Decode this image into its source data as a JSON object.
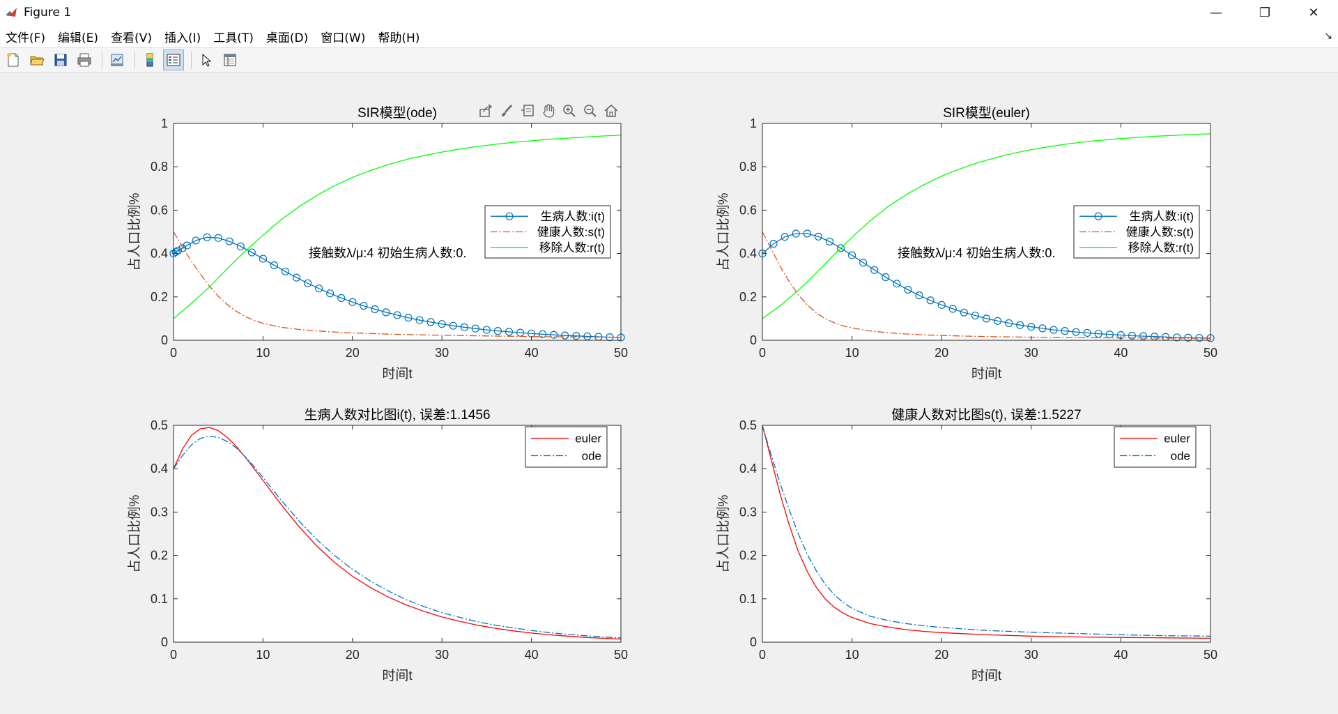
{
  "window": {
    "title": "Figure 1",
    "minimize": "—",
    "restore": "❐",
    "close": "✕"
  },
  "menu": {
    "items": [
      "文件(F)",
      "编辑(E)",
      "查看(V)",
      "插入(I)",
      "工具(T)",
      "桌面(D)",
      "窗口(W)",
      "帮助(H)"
    ]
  },
  "toolbar": {
    "icons": [
      "new-figure-icon",
      "open-file-icon",
      "save-icon",
      "print-icon",
      "link-plot-icon",
      "insert-colorbar-icon",
      "insert-legend-icon",
      "edit-plot-icon",
      "property-inspector-icon"
    ]
  },
  "axes_toolbar": {
    "icons": [
      "export-icon",
      "brush-icon",
      "datatip-icon",
      "pan-icon",
      "zoom-in-icon",
      "zoom-out-icon",
      "home-icon"
    ]
  },
  "chart_data": [
    {
      "type": "line",
      "title": "SIR模型(ode)",
      "xlabel": "时间t",
      "ylabel": "占人口比例%",
      "xlim": [
        0,
        50
      ],
      "ylim": [
        0,
        1
      ],
      "xticks": [
        0,
        10,
        20,
        30,
        40,
        50
      ],
      "yticks": [
        0,
        0.2,
        0.4,
        0.6,
        0.8,
        1
      ],
      "annotation": "接触数λ/μ:4 初始生病人数:0.",
      "legend": [
        "生病人数:i(t)",
        "健康人数:s(t)",
        "移除人数:r(t)"
      ],
      "series": [
        {
          "name": "生病人数:i(t)",
          "color": "#0072BD",
          "marker": "circle",
          "style": "solid",
          "x": [
            0,
            0.25,
            0.5,
            1,
            1.5,
            2.5,
            3.75,
            5,
            6.25,
            7.5,
            8.75,
            10,
            11.25,
            12.5,
            13.75,
            15,
            16.25,
            17.5,
            18.75,
            20,
            21.25,
            22.5,
            23.75,
            25,
            26.25,
            27.5,
            28.75,
            30,
            31.25,
            32.5,
            33.75,
            35,
            36.25,
            37.5,
            38.75,
            40,
            41.25,
            42.5,
            43.75,
            45,
            46.25,
            47.5,
            48.75,
            50
          ],
          "y": [
            0.4,
            0.407,
            0.414,
            0.425,
            0.437,
            0.46,
            0.475,
            0.472,
            0.456,
            0.433,
            0.405,
            0.376,
            0.346,
            0.317,
            0.289,
            0.263,
            0.239,
            0.216,
            0.195,
            0.176,
            0.159,
            0.143,
            0.129,
            0.116,
            0.104,
            0.093,
            0.084,
            0.075,
            0.067,
            0.06,
            0.054,
            0.048,
            0.043,
            0.039,
            0.035,
            0.031,
            0.028,
            0.025,
            0.022,
            0.02,
            0.018,
            0.016,
            0.014,
            0.013
          ]
        },
        {
          "name": "健康人数:s(t)",
          "color": "#D95319",
          "marker": "none",
          "style": "dashdot",
          "x": [
            0,
            1,
            2,
            3,
            4,
            5,
            6,
            7,
            8,
            9,
            10,
            12,
            14,
            16,
            18,
            20,
            25,
            30,
            35,
            40,
            45,
            50
          ],
          "y": [
            0.5,
            0.43,
            0.365,
            0.305,
            0.25,
            0.203,
            0.165,
            0.134,
            0.11,
            0.092,
            0.078,
            0.06,
            0.05,
            0.043,
            0.038,
            0.034,
            0.027,
            0.023,
            0.02,
            0.017,
            0.015,
            0.014
          ]
        },
        {
          "name": "移除人数:r(t)",
          "color": "#00FF00",
          "marker": "none",
          "style": "solid",
          "x": [
            0,
            2,
            4,
            6,
            8,
            10,
            12,
            14,
            16,
            18,
            20,
            22,
            24,
            26,
            28,
            30,
            32,
            34,
            36,
            38,
            40,
            42,
            44,
            46,
            48,
            50
          ],
          "y": [
            0.1,
            0.17,
            0.245,
            0.33,
            0.41,
            0.485,
            0.555,
            0.615,
            0.668,
            0.713,
            0.751,
            0.783,
            0.81,
            0.833,
            0.852,
            0.868,
            0.882,
            0.894,
            0.904,
            0.913,
            0.92,
            0.927,
            0.932,
            0.937,
            0.942,
            0.946
          ]
        }
      ]
    },
    {
      "type": "line",
      "title": "SIR模型(euler)",
      "xlabel": "时间t",
      "ylabel": "占人口比例%",
      "xlim": [
        0,
        50
      ],
      "ylim": [
        0,
        1
      ],
      "xticks": [
        0,
        10,
        20,
        30,
        40,
        50
      ],
      "yticks": [
        0,
        0.2,
        0.4,
        0.6,
        0.8,
        1
      ],
      "annotation": "接触数λ/μ:4 初始生病人数:0.",
      "legend": [
        "生病人数:i(t)",
        "健康人数:s(t)",
        "移除人数:r(t)"
      ],
      "series": [
        {
          "name": "生病人数:i(t)",
          "color": "#0072BD",
          "marker": "circle",
          "style": "solid",
          "x": [
            0,
            1.25,
            2.5,
            3.75,
            5,
            6.25,
            7.5,
            8.75,
            10,
            11.25,
            12.5,
            13.75,
            15,
            16.25,
            17.5,
            18.75,
            20,
            21.25,
            22.5,
            23.75,
            25,
            26.25,
            27.5,
            28.75,
            30,
            31.25,
            32.5,
            33.75,
            35,
            36.25,
            37.5,
            38.75,
            40,
            41.25,
            42.5,
            43.75,
            45,
            46.25,
            47.5,
            48.75,
            50
          ],
          "y": [
            0.4,
            0.445,
            0.477,
            0.492,
            0.492,
            0.478,
            0.455,
            0.425,
            0.392,
            0.358,
            0.324,
            0.291,
            0.261,
            0.233,
            0.207,
            0.184,
            0.163,
            0.145,
            0.128,
            0.114,
            0.1,
            0.089,
            0.079,
            0.07,
            0.062,
            0.055,
            0.048,
            0.043,
            0.038,
            0.034,
            0.03,
            0.027,
            0.024,
            0.021,
            0.019,
            0.017,
            0.015,
            0.013,
            0.012,
            0.011,
            0.01
          ]
        },
        {
          "name": "健康人数:s(t)",
          "color": "#D95319",
          "marker": "none",
          "style": "dashdot",
          "x": [
            0,
            1,
            2,
            3,
            4,
            5,
            6,
            7,
            8,
            9,
            10,
            12,
            14,
            16,
            18,
            20,
            25,
            30,
            35,
            40,
            45,
            50
          ],
          "y": [
            0.5,
            0.42,
            0.34,
            0.27,
            0.21,
            0.163,
            0.127,
            0.1,
            0.081,
            0.067,
            0.057,
            0.043,
            0.035,
            0.029,
            0.025,
            0.022,
            0.017,
            0.014,
            0.012,
            0.011,
            0.01,
            0.009
          ]
        },
        {
          "name": "移除人数:r(t)",
          "color": "#00FF00",
          "marker": "none",
          "style": "solid",
          "x": [
            0,
            2,
            4,
            6,
            8,
            10,
            12,
            14,
            16,
            18,
            20,
            22,
            24,
            26,
            28,
            30,
            32,
            34,
            36,
            38,
            40,
            42,
            44,
            46,
            48,
            50
          ],
          "y": [
            0.1,
            0.16,
            0.23,
            0.31,
            0.395,
            0.475,
            0.55,
            0.615,
            0.67,
            0.717,
            0.757,
            0.79,
            0.818,
            0.842,
            0.862,
            0.879,
            0.893,
            0.905,
            0.915,
            0.923,
            0.93,
            0.936,
            0.941,
            0.945,
            0.949,
            0.952
          ]
        }
      ]
    },
    {
      "type": "line",
      "title": "生病人数对比图i(t),    误差:1.1456",
      "xlabel": "时间t",
      "ylabel": "占人口比例%",
      "xlim": [
        0,
        50
      ],
      "ylim": [
        0,
        0.5
      ],
      "xticks": [
        0,
        10,
        20,
        30,
        40,
        50
      ],
      "yticks": [
        0,
        0.1,
        0.2,
        0.3,
        0.4,
        0.5
      ],
      "legend": [
        "euler",
        "ode"
      ],
      "series": [
        {
          "name": "euler",
          "color": "#FF0000",
          "marker": "none",
          "style": "solid",
          "x": [
            0,
            1,
            2,
            3,
            4,
            5,
            6,
            7,
            8,
            9,
            10,
            12,
            14,
            16,
            18,
            20,
            22,
            24,
            26,
            28,
            30,
            32,
            34,
            36,
            38,
            40,
            42,
            44,
            46,
            48,
            50
          ],
          "y": [
            0.4,
            0.445,
            0.477,
            0.492,
            0.495,
            0.488,
            0.472,
            0.452,
            0.427,
            0.4,
            0.373,
            0.318,
            0.267,
            0.222,
            0.184,
            0.152,
            0.126,
            0.104,
            0.086,
            0.071,
            0.058,
            0.048,
            0.039,
            0.032,
            0.026,
            0.021,
            0.017,
            0.014,
            0.011,
            0.009,
            0.007
          ]
        },
        {
          "name": "ode",
          "color": "#0072BD",
          "marker": "none",
          "style": "dashdot",
          "x": [
            0,
            1,
            2,
            3,
            4,
            5,
            6,
            7,
            8,
            9,
            10,
            12,
            14,
            16,
            18,
            20,
            22,
            24,
            26,
            28,
            30,
            32,
            34,
            36,
            38,
            40,
            42,
            44,
            46,
            48,
            50
          ],
          "y": [
            0.4,
            0.43,
            0.455,
            0.47,
            0.475,
            0.472,
            0.463,
            0.448,
            0.428,
            0.405,
            0.38,
            0.328,
            0.28,
            0.237,
            0.2,
            0.168,
            0.141,
            0.118,
            0.098,
            0.082,
            0.068,
            0.057,
            0.047,
            0.039,
            0.033,
            0.027,
            0.022,
            0.018,
            0.015,
            0.012,
            0.01
          ]
        }
      ]
    },
    {
      "type": "line",
      "title": "健康人数对比图s(t),    误差:1.5227",
      "xlabel": "时间t",
      "ylabel": "占人口比例%",
      "xlim": [
        0,
        50
      ],
      "ylim": [
        0,
        0.5
      ],
      "xticks": [
        0,
        10,
        20,
        30,
        40,
        50
      ],
      "yticks": [
        0,
        0.1,
        0.2,
        0.3,
        0.4,
        0.5
      ],
      "legend": [
        "euler",
        "ode"
      ],
      "series": [
        {
          "name": "euler",
          "color": "#FF0000",
          "marker": "none",
          "style": "solid",
          "x": [
            0,
            1,
            2,
            3,
            4,
            5,
            6,
            7,
            8,
            9,
            10,
            12,
            14,
            16,
            18,
            20,
            25,
            30,
            35,
            40,
            45,
            50
          ],
          "y": [
            0.5,
            0.42,
            0.34,
            0.27,
            0.21,
            0.163,
            0.127,
            0.1,
            0.081,
            0.067,
            0.057,
            0.043,
            0.035,
            0.029,
            0.025,
            0.022,
            0.017,
            0.014,
            0.012,
            0.011,
            0.01,
            0.009
          ]
        },
        {
          "name": "ode",
          "color": "#0072BD",
          "marker": "none",
          "style": "dashdot",
          "x": [
            0,
            1,
            2,
            3,
            4,
            5,
            6,
            7,
            8,
            9,
            10,
            12,
            14,
            16,
            18,
            20,
            25,
            30,
            35,
            40,
            45,
            50
          ],
          "y": [
            0.5,
            0.43,
            0.365,
            0.305,
            0.25,
            0.203,
            0.165,
            0.134,
            0.11,
            0.092,
            0.078,
            0.06,
            0.05,
            0.043,
            0.038,
            0.034,
            0.027,
            0.023,
            0.02,
            0.017,
            0.015,
            0.014
          ]
        }
      ]
    }
  ]
}
